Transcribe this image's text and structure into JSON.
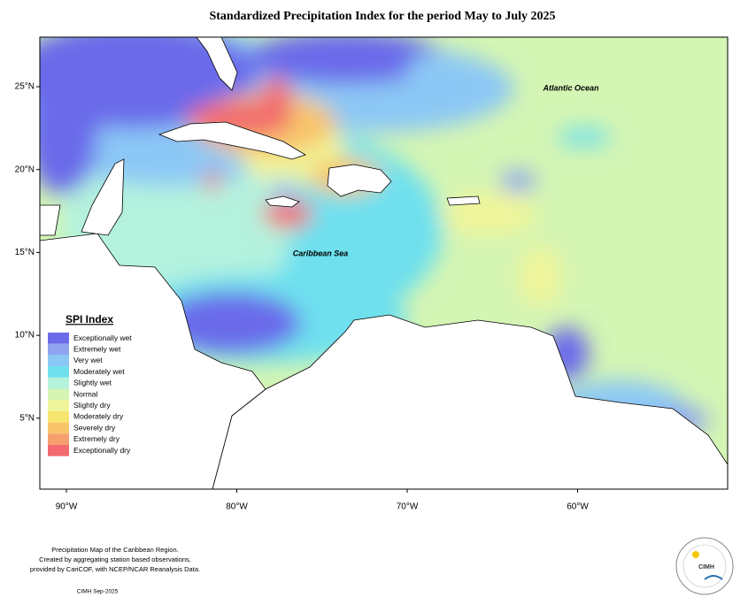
{
  "title": "Standardized Precipitation Index for the period May to July 2025",
  "map": {
    "ocean_labels": [
      "Atlantic Ocean",
      "Caribbean Sea"
    ],
    "lat_ticks": [
      "25°N",
      "20°N",
      "15°N",
      "10°N",
      "5°N"
    ],
    "lon_ticks": [
      "90°W",
      "80°W",
      "70°W",
      "60°W"
    ]
  },
  "legend": {
    "title": "SPI Index",
    "items": [
      {
        "label": "Exceptionally wet",
        "color": "#6b6bea"
      },
      {
        "label": "Extremely wet",
        "color": "#8fa4f0"
      },
      {
        "label": "Very wet",
        "color": "#8cc8f5"
      },
      {
        "label": "Moderately wet",
        "color": "#6ee0ee"
      },
      {
        "label": "Slightly wet",
        "color": "#b4f2de"
      },
      {
        "label": "Normal",
        "color": "#d4f5b4"
      },
      {
        "label": "Slightly dry",
        "color": "#f0f59a"
      },
      {
        "label": "Moderately dry",
        "color": "#f6e56e"
      },
      {
        "label": "Severely dry",
        "color": "#f8c46a"
      },
      {
        "label": "Extremely dry",
        "color": "#f6a070"
      },
      {
        "label": "Exceptionally dry",
        "color": "#f26a6e"
      }
    ]
  },
  "footnote": [
    "Precipitation Map of the Caribbean Region.",
    "Created by aggregating station based observations,",
    "provided by CariCOF, with NCEP/NCAR Reanalysis Data."
  ],
  "credit": "CIMH Sep-2025",
  "logo": "CIMH"
}
